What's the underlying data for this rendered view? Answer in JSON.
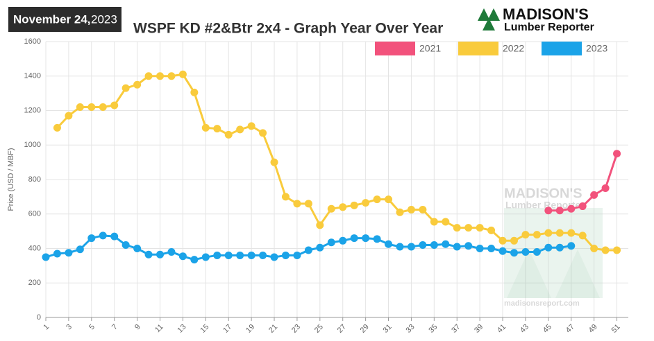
{
  "header": {
    "date": "November 24,",
    "year": "2023",
    "logo_name": "MADISON'S",
    "logo_sub": "Lumber Reporter",
    "watermark_name": "MADISON'S",
    "watermark_sub": "Lumber Reporter",
    "watermark_url": "madisonsreport.com"
  },
  "chart_data": {
    "type": "line",
    "title": "WSPF KD #2&Btr 2x4 - Graph Year Over Year",
    "y_label": "Price (USD / MBF)",
    "x": [
      1,
      2,
      3,
      4,
      5,
      6,
      7,
      8,
      9,
      10,
      11,
      12,
      13,
      14,
      15,
      16,
      17,
      18,
      19,
      20,
      21,
      22,
      23,
      24,
      25,
      26,
      27,
      28,
      29,
      30,
      31,
      32,
      33,
      34,
      35,
      36,
      37,
      38,
      39,
      40,
      41,
      42,
      43,
      44,
      45,
      46,
      47,
      48,
      49,
      50,
      51,
      52
    ],
    "xlim": [
      1,
      52
    ],
    "xticks": [
      1,
      3,
      5,
      7,
      9,
      11,
      13,
      15,
      17,
      19,
      21,
      23,
      25,
      27,
      29,
      31,
      33,
      35,
      37,
      39,
      41,
      43,
      45,
      47,
      49,
      51
    ],
    "ylim": [
      0,
      1600
    ],
    "yticks": [
      0,
      200,
      400,
      600,
      800,
      1000,
      1200,
      1400,
      1600
    ],
    "grid": true,
    "legend": "top-right",
    "series": [
      {
        "name": "2021",
        "color": "#f2527c",
        "values": [
          null,
          null,
          null,
          null,
          null,
          null,
          null,
          null,
          null,
          null,
          null,
          null,
          null,
          null,
          null,
          null,
          null,
          null,
          null,
          null,
          null,
          null,
          null,
          null,
          null,
          null,
          null,
          null,
          null,
          null,
          null,
          null,
          null,
          null,
          null,
          null,
          null,
          null,
          null,
          null,
          null,
          null,
          null,
          null,
          620,
          620,
          630,
          645,
          710,
          750,
          950,
          null
        ]
      },
      {
        "name": "2022",
        "color": "#f9cb3c",
        "values": [
          null,
          1100,
          1170,
          1220,
          1220,
          1220,
          1230,
          1330,
          1350,
          1400,
          1400,
          1400,
          1410,
          1305,
          1100,
          1095,
          1060,
          1090,
          1110,
          1070,
          900,
          700,
          660,
          660,
          535,
          630,
          640,
          650,
          665,
          685,
          685,
          610,
          625,
          625,
          555,
          555,
          520,
          520,
          520,
          505,
          445,
          445,
          480,
          480,
          490,
          490,
          490,
          475,
          400,
          390,
          390,
          null
        ]
      },
      {
        "name": "2023",
        "color": "#1ba3e8",
        "values": [
          350,
          370,
          375,
          395,
          460,
          475,
          470,
          420,
          400,
          365,
          365,
          380,
          355,
          335,
          350,
          360,
          360,
          360,
          360,
          360,
          350,
          360,
          360,
          390,
          405,
          435,
          445,
          460,
          460,
          455,
          425,
          410,
          410,
          420,
          420,
          425,
          410,
          415,
          400,
          400,
          385,
          375,
          380,
          380,
          405,
          405,
          415,
          null,
          null,
          null,
          null,
          null
        ]
      }
    ]
  }
}
